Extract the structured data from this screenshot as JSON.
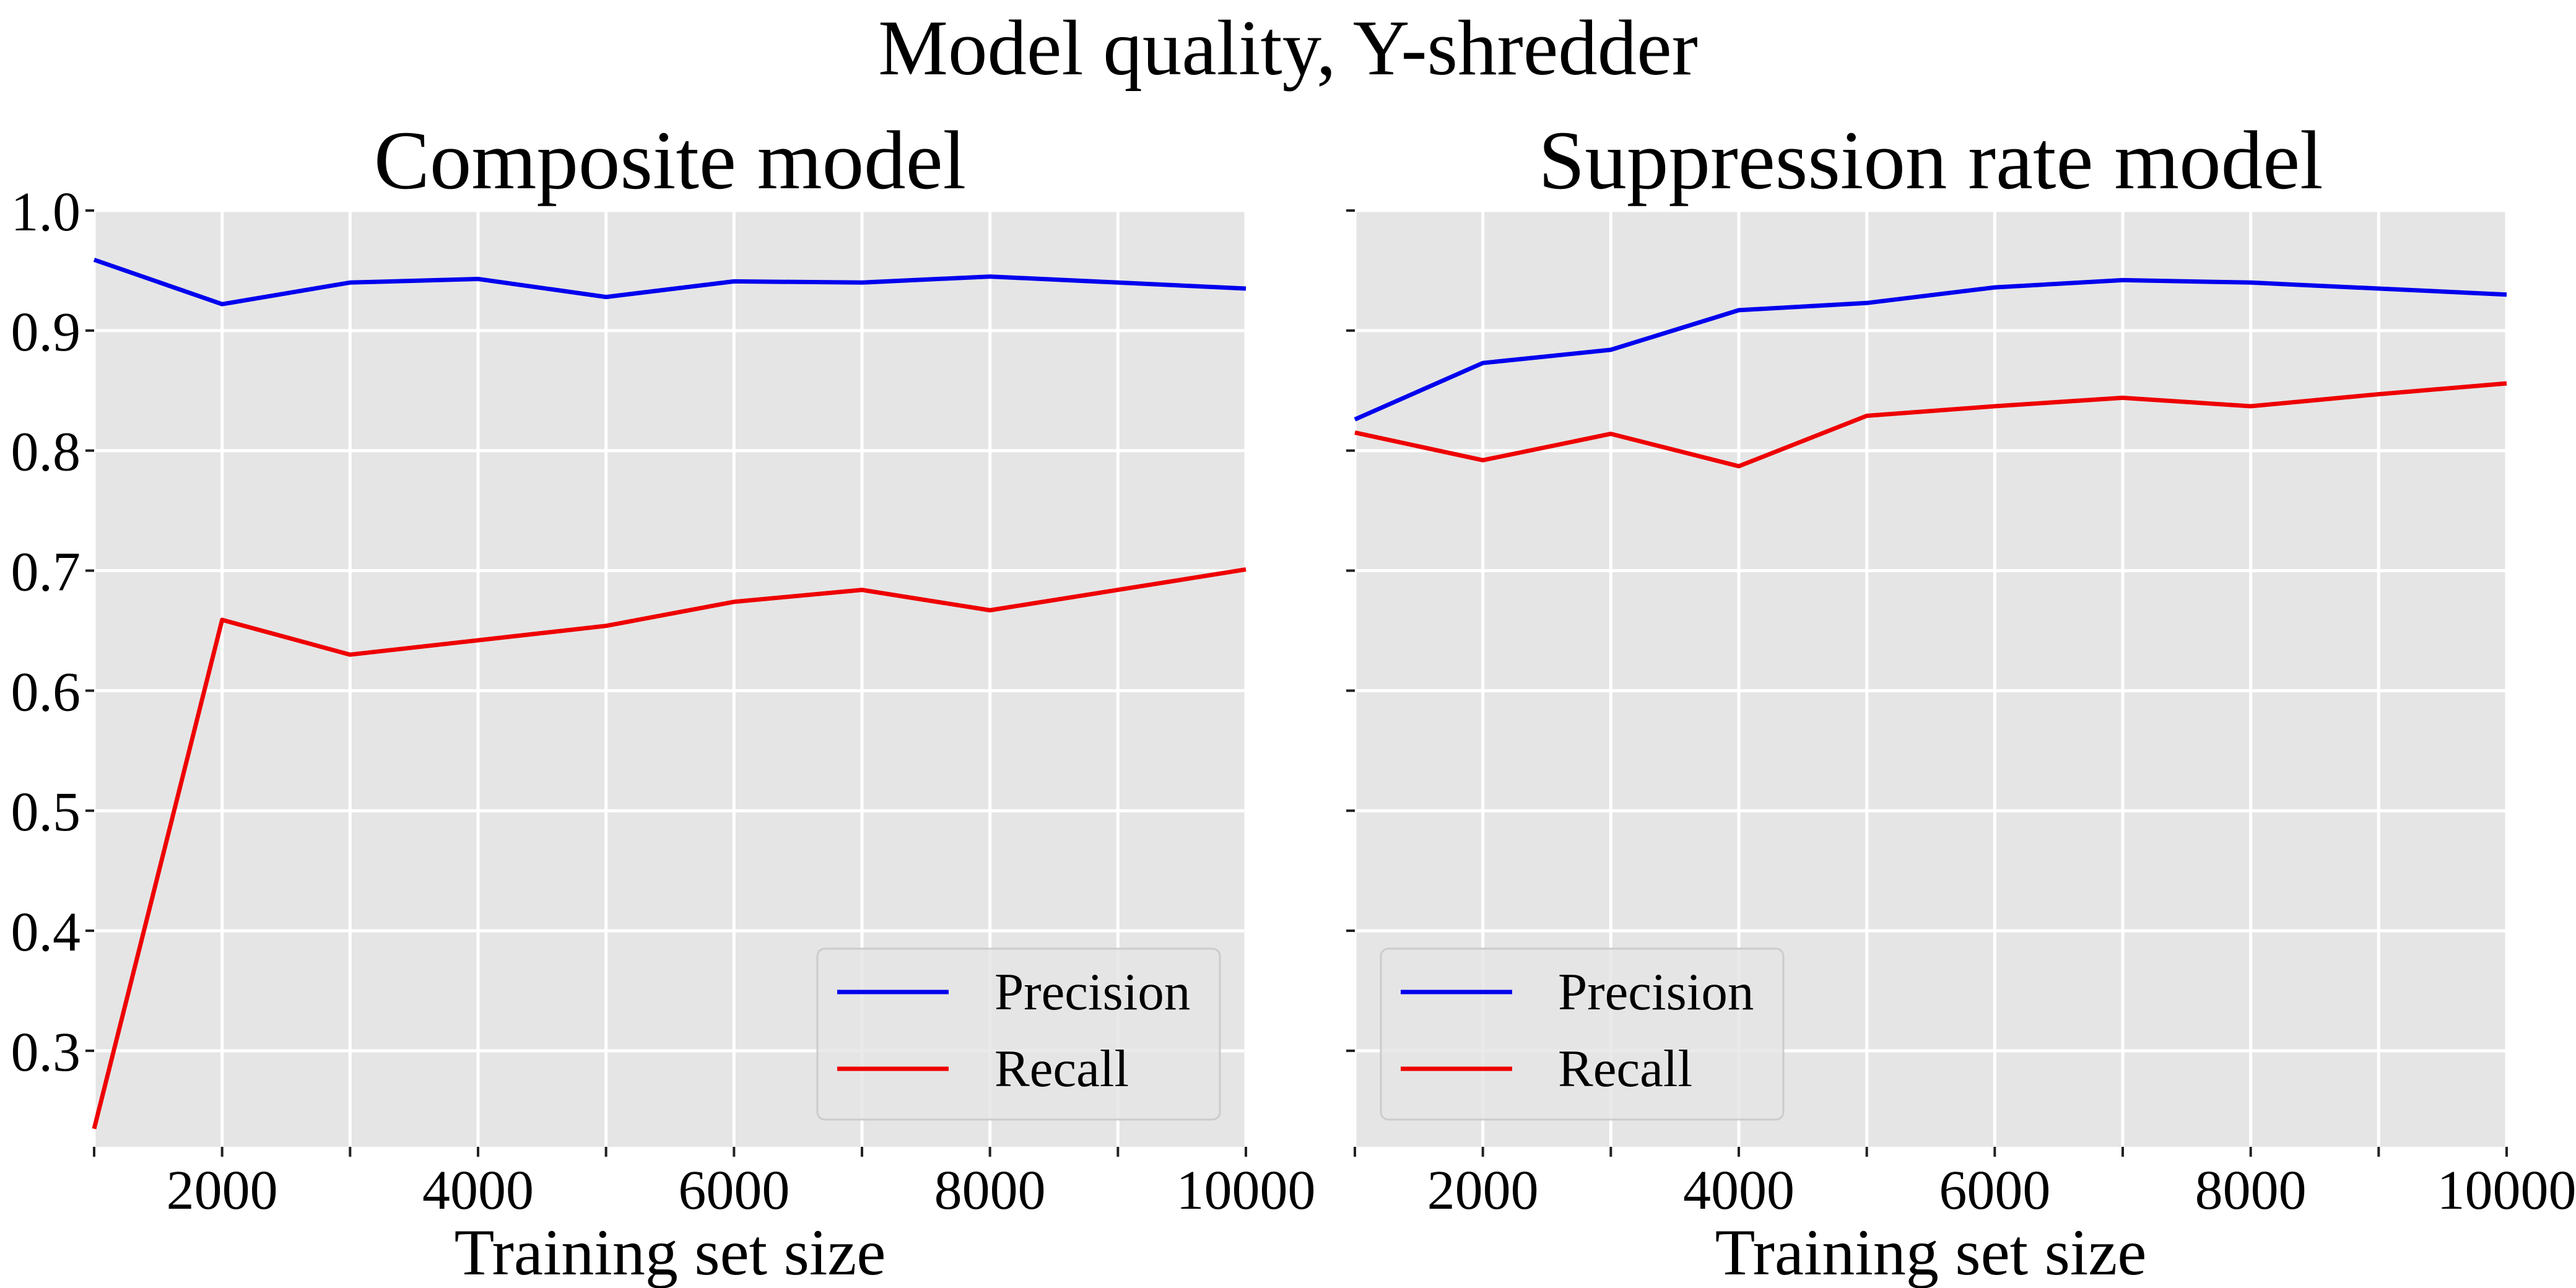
{
  "suptitle": "Model quality, Y-shredder",
  "chart_data": [
    {
      "type": "line",
      "title": "Composite model",
      "xlabel": "Training set size",
      "ylabel": "",
      "xlim": [
        1000,
        10000
      ],
      "ylim": [
        0.22,
        1.0
      ],
      "xticks": [
        2000,
        4000,
        6000,
        8000,
        10000
      ],
      "xticks_minor": [
        1000,
        3000,
        5000,
        7000,
        9000
      ],
      "yticks": [
        0.3,
        0.4,
        0.5,
        0.6,
        0.7,
        0.8,
        0.9,
        1.0
      ],
      "grid": true,
      "legend": "lower-right",
      "x": [
        1000,
        2000,
        3000,
        4000,
        5000,
        6000,
        7000,
        8000,
        9000,
        10000
      ],
      "series": [
        {
          "name": "Precision",
          "color": "#0000ee",
          "values": [
            0.959,
            0.922,
            0.94,
            0.943,
            0.928,
            0.941,
            0.94,
            0.945,
            0.94,
            0.935
          ]
        },
        {
          "name": "Recall",
          "color": "#ee0000",
          "values": [
            0.235,
            0.659,
            0.63,
            0.642,
            0.654,
            0.674,
            0.684,
            0.667,
            0.684,
            0.701
          ]
        }
      ]
    },
    {
      "type": "line",
      "title": "Suppression rate model",
      "xlabel": "Training set size",
      "ylabel": "",
      "xlim": [
        1000,
        10000
      ],
      "ylim": [
        0.22,
        1.0
      ],
      "xticks": [
        2000,
        4000,
        6000,
        8000,
        10000
      ],
      "xticks_minor": [
        1000,
        3000,
        5000,
        7000,
        9000
      ],
      "yticks": [
        0.3,
        0.4,
        0.5,
        0.6,
        0.7,
        0.8,
        0.9,
        1.0
      ],
      "grid": true,
      "legend": "lower-left",
      "x": [
        1000,
        2000,
        3000,
        4000,
        5000,
        6000,
        7000,
        8000,
        9000,
        10000
      ],
      "series": [
        {
          "name": "Precision",
          "color": "#0000ee",
          "values": [
            0.826,
            0.873,
            0.884,
            0.917,
            0.923,
            0.936,
            0.942,
            0.94,
            0.935,
            0.93
          ]
        },
        {
          "name": "Recall",
          "color": "#ee0000",
          "values": [
            0.815,
            0.792,
            0.814,
            0.787,
            0.829,
            0.837,
            0.844,
            0.837,
            0.847,
            0.856
          ]
        }
      ]
    }
  ]
}
